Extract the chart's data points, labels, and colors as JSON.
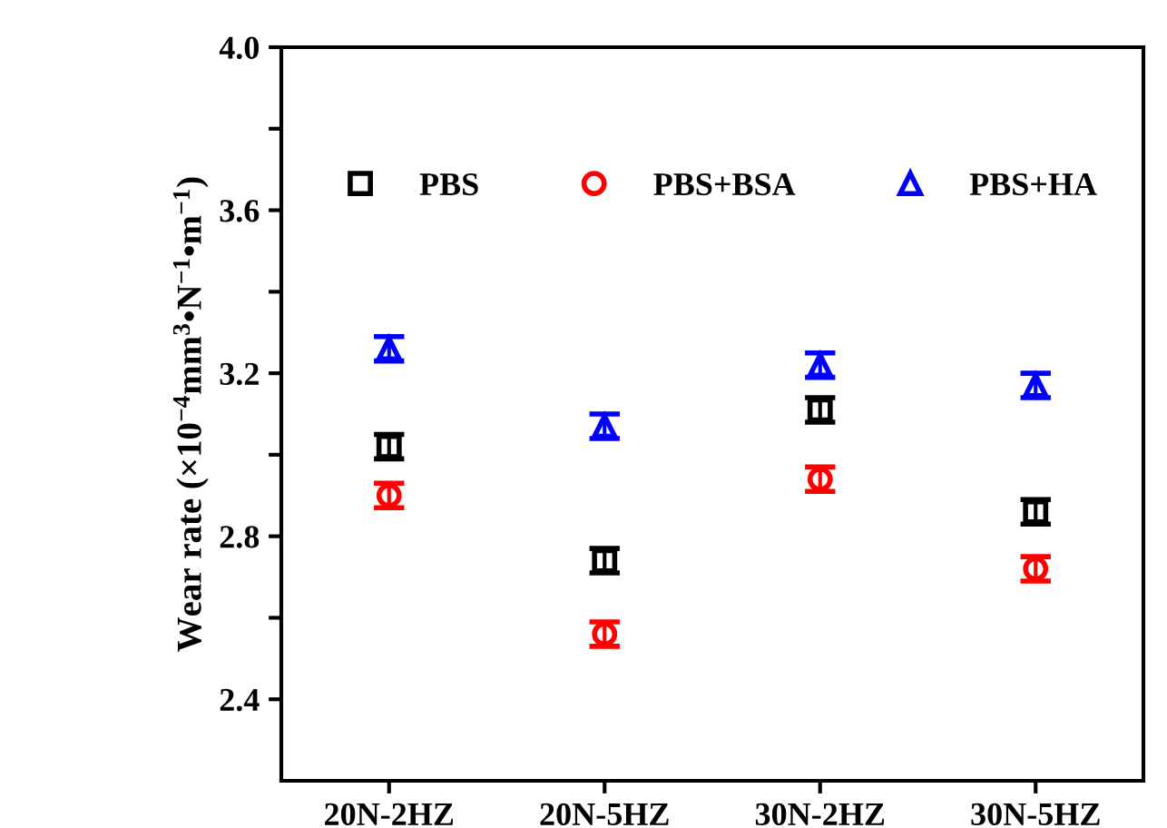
{
  "chart_data": {
    "type": "scatter",
    "ylabel": "Wear rate (×10$^{−4}$mm$^{3}$•N$^{−1}$•m$^{−1}$)",
    "categories": [
      "20N-2HZ",
      "20N-5HZ",
      "30N-2HZ",
      "30N-5HZ"
    ],
    "series": [
      {
        "name": "PBS",
        "color": "#000000",
        "marker": "square",
        "values": [
          3.02,
          2.74,
          3.11,
          2.86
        ],
        "errors": [
          0.03,
          0.03,
          0.03,
          0.03
        ]
      },
      {
        "name": "PBS+BSA",
        "color": "#ff0000",
        "marker": "circle",
        "values": [
          2.9,
          2.56,
          2.94,
          2.72
        ],
        "errors": [
          0.03,
          0.03,
          0.03,
          0.03
        ]
      },
      {
        "name": "PBS+HA",
        "color": "#0000ff",
        "marker": "triangle",
        "values": [
          3.26,
          3.07,
          3.22,
          3.17
        ],
        "errors": [
          0.03,
          0.03,
          0.03,
          0.03
        ]
      }
    ],
    "ylim": [
      2.2,
      4.0
    ],
    "yticks": [
      {
        "value": 2.4,
        "label": "2.4"
      },
      {
        "value": 2.6,
        "label": null
      },
      {
        "value": 2.8,
        "label": "2.8"
      },
      {
        "value": 3.0,
        "label": null
      },
      {
        "value": 3.2,
        "label": "3.2"
      },
      {
        "value": 3.4,
        "label": null
      },
      {
        "value": 3.6,
        "label": "3.6"
      },
      {
        "value": 3.8,
        "label": null
      },
      {
        "value": 4.0,
        "label": "4.0"
      }
    ],
    "legend": "top",
    "grid": false
  }
}
